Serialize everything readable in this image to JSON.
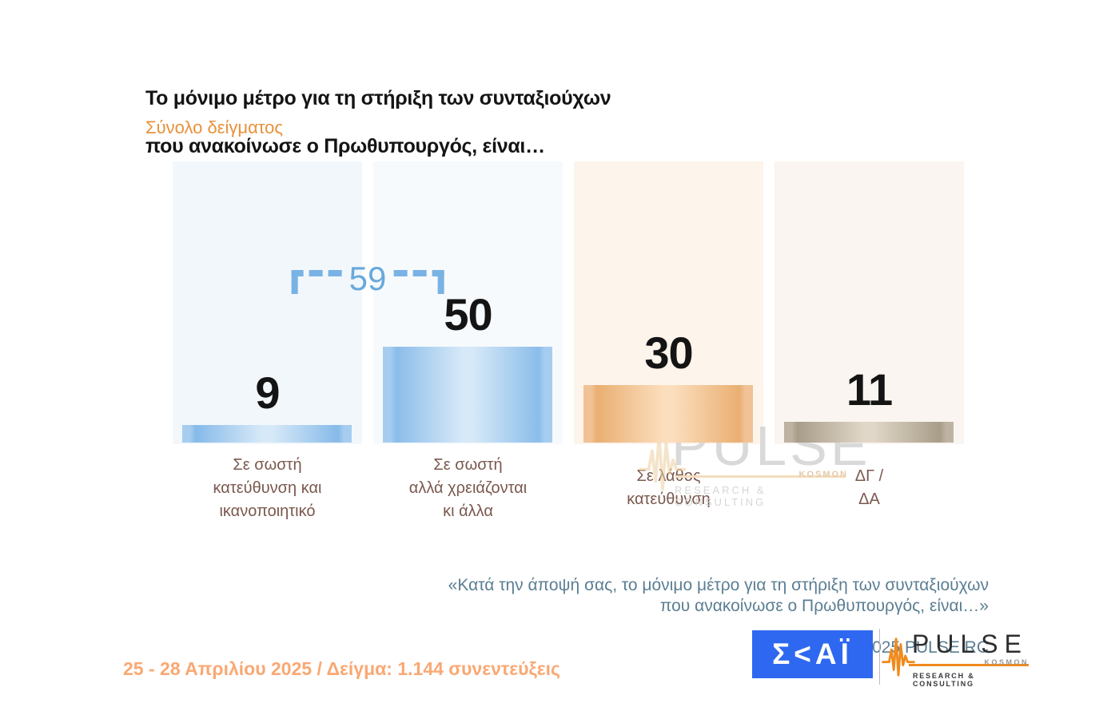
{
  "header": {
    "title_line1": "Το μόνιμο μέτρο  για τη στήριξη των συνταξιούχων",
    "title_line2": "που ανακοίνωσε ο Πρωθυπουργός, είναι…",
    "subtitle": "Σύνολο δείγματος"
  },
  "colors": {
    "title": "#141414",
    "subtitle_orange": "#e8913a",
    "category_label_brown": "#7a584e",
    "footnote_slate": "#5b7e93",
    "fieldwork_orange": "#f9a873",
    "bracket_blue": "#79b2e4",
    "skai_blue": "#2e68f0",
    "pulse_orange": "#f08a1d"
  },
  "chart_data": {
    "type": "bar",
    "title": "Το μόνιμο μέτρο για τη στήριξη των συνταξιούχων που ανακοίνωσε ο Πρωθυπουργός, είναι…",
    "subtitle": "Σύνολο δείγματος",
    "unit": "percent of respondents",
    "ylim": [
      0,
      147
    ],
    "grid": false,
    "legend": false,
    "categories": [
      "Σε σωστή κατεύθυνση και ικανοποιητικό",
      "Σε σωστή αλλά χρειάζονται κι άλλα",
      "Σε λάθος κατεύθυνση",
      "ΔΓ / ΔΑ"
    ],
    "values": [
      9,
      50,
      30,
      11
    ],
    "bracket": {
      "label": "59",
      "value": 59,
      "note": "sum of first two bars"
    },
    "columns": [
      {
        "label": "Σε σωστή\nκατεύθυνση και\nικανοποιητικό",
        "value": 9,
        "value_label": "9",
        "colors": {
          "panel": "#f2f7fc",
          "cap": "#a6cdef",
          "edge": "#86bae9",
          "center": "#d7e9f8"
        }
      },
      {
        "label": "Σε σωστή\nαλλά χρειάζονται\nκι άλλα",
        "value": 50,
        "value_label": "50",
        "colors": {
          "panel": "#f6fafd",
          "cap": "#a6cdef",
          "edge": "#8bbdea",
          "center": "#d7e9f8"
        }
      },
      {
        "label": "Σε λάθος\nκατεύθυνση",
        "value": 30,
        "value_label": "30",
        "colors": {
          "panel": "#fdf4ec",
          "cap": "#f0c296",
          "edge": "#eaaf72",
          "center": "#fbdebd"
        }
      },
      {
        "label": "ΔΓ /\nΔΑ",
        "value": 11,
        "value_label": "11",
        "colors": {
          "panel": "#faf5f0",
          "cap": "#beb3a2",
          "edge": "#a89d89",
          "center": "#e1d7c8"
        }
      }
    ]
  },
  "watermark": {
    "brand": "PULSE",
    "sub_brand": "KOSMON",
    "tagline": "RESEARCH & CONSULTING"
  },
  "footnote": {
    "quote": "«Κατά την άποψή σας, το μόνιμο μέτρο  για τη στήριξη των συνταξιούχων\nπου ανακοίνωσε ο Πρωθυπουργός, είναι…»",
    "copyright": "©  2025  PULSE RC"
  },
  "footer": {
    "fieldwork": "25 - 28 Απριλίου 2025  /  Δείγμα:  1.144 συνεντεύξεις",
    "skai_logo_text": "Σ<ΑΪ",
    "pulse_logo": {
      "brand": "PULSE",
      "sub_brand": "KOSMON",
      "tagline": "RESEARCH & CONSULTING"
    }
  }
}
